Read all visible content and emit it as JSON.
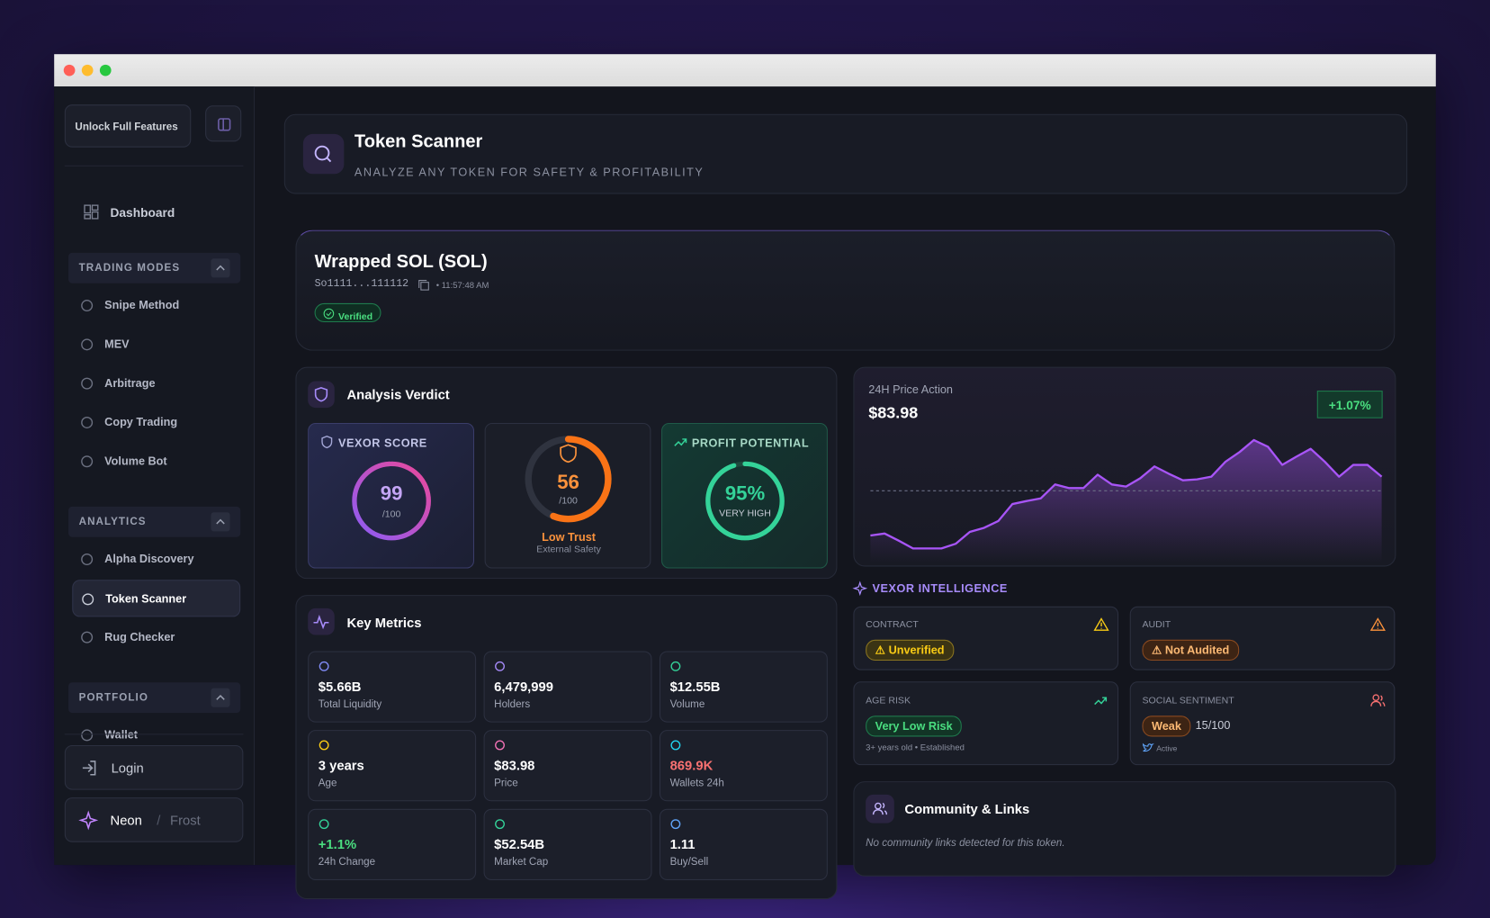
{
  "sidebar": {
    "unlock": "Unlock Full Features",
    "dashboard": "Dashboard",
    "sections": [
      {
        "title": "TRADING MODES",
        "items": [
          "Snipe Method",
          "MEV",
          "Arbitrage",
          "Copy Trading",
          "Volume Bot"
        ]
      },
      {
        "title": "ANALYTICS",
        "items": [
          "Alpha Discovery",
          "Token Scanner",
          "Rug Checker"
        ],
        "active": 1
      },
      {
        "title": "PORTFOLIO",
        "items": [
          "Wallet"
        ]
      }
    ],
    "login": "Login",
    "theme": {
      "active": "Neon",
      "separator": "/",
      "other": "Frost"
    }
  },
  "header": {
    "title": "Token Scanner",
    "subtitle": "ANALYZE ANY TOKEN FOR SAFETY & PROFITABILITY"
  },
  "token": {
    "name": "Wrapped SOL (SOL)",
    "address": "So1111...111112",
    "time": "• 11:57:48 AM",
    "badge": "Verified"
  },
  "verdict": {
    "title": "Analysis Verdict",
    "vexor": {
      "label": "VEXOR SCORE",
      "score": 99,
      "max_label": "/100"
    },
    "trust": {
      "score": 56,
      "max_label": "/100",
      "level": "Low Trust",
      "source": "External Safety"
    },
    "profit": {
      "label": "PROFIT POTENTIAL",
      "score": {
        "value": 95,
        "label": "95%"
      },
      "level": "VERY HIGH"
    }
  },
  "metrics": {
    "title": "Key Metrics",
    "items": [
      {
        "value": "$5.66B",
        "label": "Total Liquidity",
        "icon_color": "#818cf8",
        "value_color": "#ffffff"
      },
      {
        "value": "6,479,999",
        "label": "Holders",
        "icon_color": "#a78bfa",
        "value_color": "#ffffff"
      },
      {
        "value": "$12.55B",
        "label": "Volume",
        "icon_color": "#34d399",
        "value_color": "#ffffff"
      },
      {
        "value": "3 years",
        "label": "Age",
        "icon_color": "#facc15",
        "value_color": "#ffffff"
      },
      {
        "value": "$83.98",
        "label": "Price",
        "icon_color": "#f472b6",
        "value_color": "#ffffff"
      },
      {
        "value": "869.9K",
        "label": "Wallets 24h",
        "icon_color": "#22d3ee",
        "value_color": "#f87171"
      },
      {
        "value": "+1.1%",
        "label": "24h Change",
        "icon_color": "#34d399",
        "value_color": "#4ade80"
      },
      {
        "value": "$52.54B",
        "label": "Market Cap",
        "icon_color": "#34d399",
        "value_color": "#ffffff"
      },
      {
        "value": "1.11",
        "label": "Buy/Sell",
        "icon_color": "#60a5fa",
        "value_color": "#ffffff"
      }
    ]
  },
  "price_action": {
    "title": "24H Price Action",
    "price": "$83.98",
    "change": "+1.07%",
    "color": "#a855f7",
    "values": [
      82.89,
      82.93,
      82.79,
      82.64,
      82.64,
      82.64,
      82.73,
      82.96,
      83.04,
      83.17,
      83.5,
      83.56,
      83.61,
      83.88,
      83.81,
      83.81,
      84.07,
      83.88,
      83.84,
      84.0,
      84.23,
      84.09,
      83.96,
      83.98,
      84.03,
      84.32,
      84.51,
      84.74,
      84.61,
      84.26,
      84.42,
      84.57,
      84.32,
      84.03,
      84.26,
      84.26,
      84.03
    ]
  },
  "intelligence": {
    "title": "VEXOR INTELLIGENCE",
    "contract": {
      "label": "CONTRACT",
      "status": "⚠ Unverified"
    },
    "audit": {
      "label": "AUDIT",
      "status": "⚠ Not Audited"
    },
    "age": {
      "label": "AGE RISK",
      "status": "Very Low Risk",
      "note": "3+ years old • Established"
    },
    "social": {
      "label": "SOCIAL SENTIMENT",
      "status": "Weak",
      "score": "15/100",
      "twitter": "Active"
    }
  },
  "community": {
    "title": "Community & Links",
    "note": "No community links detected for this token."
  }
}
